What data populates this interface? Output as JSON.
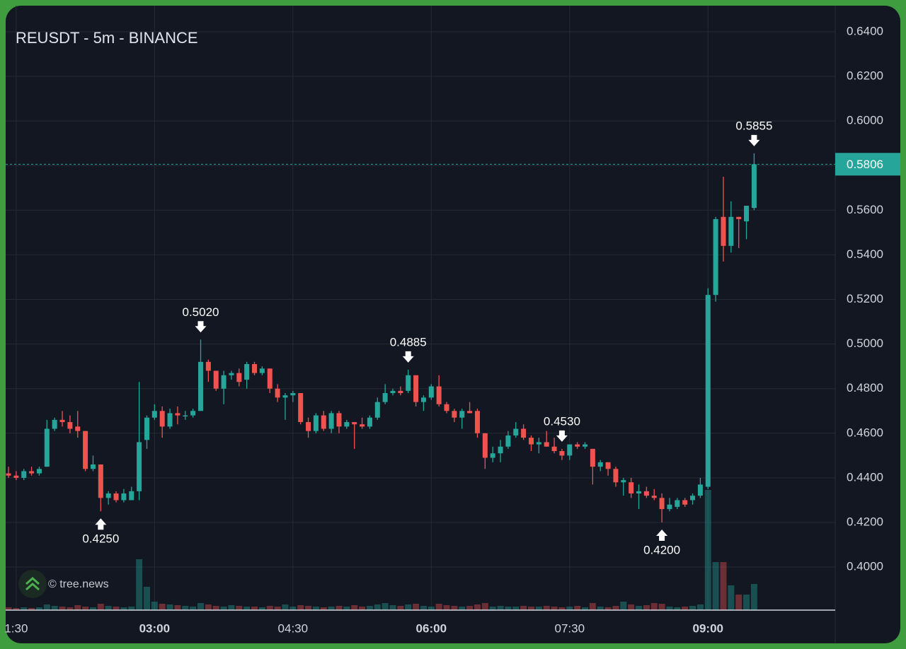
{
  "chart_data": {
    "type": "candlestick",
    "title": "REUSDT - 5m - BINANCE",
    "watermark": "© tree.news",
    "categories": [
      null,
      "1:30",
      null,
      null,
      null,
      null,
      null,
      null,
      null,
      null,
      null,
      null,
      null,
      null,
      null,
      null,
      null,
      null,
      null,
      "03:00",
      null,
      null,
      null,
      null,
      null,
      null,
      null,
      null,
      null,
      null,
      null,
      null,
      null,
      null,
      null,
      null,
      null,
      "04:30",
      null,
      null,
      null,
      null,
      null,
      null,
      null,
      null,
      null,
      null,
      null,
      null,
      null,
      null,
      null,
      null,
      null,
      "06:00",
      null,
      null,
      null,
      null,
      null,
      null,
      null,
      null,
      null,
      null,
      null,
      null,
      null,
      null,
      null,
      null,
      null,
      "07:30",
      null,
      null,
      null,
      null,
      null,
      null,
      null,
      null,
      null,
      null,
      null,
      null,
      null,
      null,
      null,
      null,
      null,
      "09:00",
      null,
      null,
      null,
      null,
      null,
      null
    ],
    "open": [
      0.442,
      0.441,
      0.44,
      0.443,
      0.442,
      0.445,
      0.462,
      0.466,
      0.465,
      0.463,
      0.461,
      0.444,
      0.446,
      0.431,
      0.433,
      0.43,
      0.43,
      0.434,
      0.457,
      0.467,
      0.47,
      0.463,
      0.469,
      0.468,
      0.468,
      0.47,
      0.492,
      0.488,
      0.48,
      0.486,
      0.487,
      0.484,
      0.491,
      0.487,
      0.489,
      0.48,
      0.476,
      0.477,
      0.478,
      0.465,
      0.461,
      0.468,
      0.462,
      0.469,
      0.463,
      0.465,
      0.464,
      0.463,
      0.467,
      0.474,
      0.478,
      0.479,
      0.479,
      0.486,
      0.474,
      0.476,
      0.481,
      0.473,
      0.47,
      0.467,
      0.47,
      0.47,
      0.46,
      0.449,
      0.451,
      0.454,
      0.459,
      0.462,
      0.458,
      0.455,
      0.456,
      0.454,
      0.452,
      0.45,
      0.455,
      0.454,
      0.453,
      0.445,
      0.447,
      0.444,
      0.438,
      0.438,
      0.433,
      0.434,
      0.432,
      0.431,
      0.426,
      0.427,
      0.43,
      0.43,
      0.432,
      0.436,
      0.522,
      0.557,
      0.544,
      0.557,
      0.555,
      0.561
    ],
    "high": [
      0.445,
      0.443,
      0.444,
      0.445,
      0.445,
      0.466,
      0.467,
      0.47,
      0.468,
      0.47,
      0.461,
      0.45,
      0.446,
      0.434,
      0.434,
      0.435,
      0.436,
      0.483,
      0.468,
      0.473,
      0.472,
      0.471,
      0.472,
      0.47,
      0.471,
      0.502,
      0.493,
      0.488,
      0.488,
      0.488,
      0.489,
      0.492,
      0.492,
      0.49,
      0.489,
      0.482,
      0.478,
      0.479,
      0.478,
      0.467,
      0.469,
      0.47,
      0.47,
      0.47,
      0.466,
      0.465,
      0.467,
      0.468,
      0.476,
      0.482,
      0.48,
      0.481,
      0.4885,
      0.486,
      0.477,
      0.482,
      0.486,
      0.474,
      0.471,
      0.471,
      0.474,
      0.471,
      0.46,
      0.454,
      0.457,
      0.461,
      0.465,
      0.464,
      0.459,
      0.458,
      0.461,
      0.458,
      0.453,
      0.455,
      0.456,
      0.456,
      0.453,
      0.448,
      0.447,
      0.445,
      0.44,
      0.44,
      0.437,
      0.436,
      0.435,
      0.433,
      0.431,
      0.431,
      0.431,
      0.433,
      0.44,
      0.525,
      0.557,
      0.575,
      0.564,
      0.557,
      0.562,
      0.5855
    ],
    "low": [
      0.44,
      0.439,
      0.439,
      0.441,
      0.441,
      0.445,
      0.461,
      0.463,
      0.46,
      0.458,
      0.443,
      0.443,
      0.425,
      0.428,
      0.429,
      0.429,
      0.43,
      0.43,
      0.453,
      0.466,
      0.458,
      0.462,
      0.464,
      0.466,
      0.467,
      0.47,
      0.483,
      0.479,
      0.473,
      0.484,
      0.481,
      0.48,
      0.486,
      0.486,
      0.478,
      0.474,
      0.466,
      0.474,
      0.464,
      0.458,
      0.46,
      0.461,
      0.46,
      0.46,
      0.462,
      0.453,
      0.462,
      0.462,
      0.466,
      0.473,
      0.477,
      0.477,
      0.478,
      0.472,
      0.47,
      0.475,
      0.472,
      0.469,
      0.465,
      0.462,
      0.469,
      0.458,
      0.444,
      0.447,
      0.447,
      0.453,
      0.458,
      0.457,
      0.452,
      0.451,
      0.454,
      0.451,
      0.448,
      0.448,
      0.453,
      0.453,
      0.437,
      0.443,
      0.441,
      0.436,
      0.432,
      0.431,
      0.426,
      0.431,
      0.43,
      0.42,
      0.425,
      0.426,
      0.427,
      0.428,
      0.431,
      0.435,
      0.519,
      0.537,
      0.541,
      0.543,
      0.547,
      0.56
    ],
    "close": [
      0.441,
      0.44,
      0.443,
      0.442,
      0.444,
      0.462,
      0.466,
      0.465,
      0.462,
      0.461,
      0.444,
      0.446,
      0.431,
      0.433,
      0.43,
      0.433,
      0.434,
      0.456,
      0.467,
      0.47,
      0.463,
      0.469,
      0.468,
      0.468,
      0.47,
      0.492,
      0.488,
      0.48,
      0.486,
      0.487,
      0.483,
      0.491,
      0.487,
      0.489,
      0.48,
      0.476,
      0.477,
      0.478,
      0.465,
      0.461,
      0.468,
      0.462,
      0.469,
      0.463,
      0.465,
      0.464,
      0.463,
      0.467,
      0.474,
      0.478,
      0.479,
      0.478,
      0.486,
      0.474,
      0.476,
      0.481,
      0.473,
      0.47,
      0.467,
      0.47,
      0.469,
      0.46,
      0.449,
      0.451,
      0.454,
      0.459,
      0.462,
      0.458,
      0.455,
      0.456,
      0.454,
      0.452,
      0.45,
      0.455,
      0.454,
      0.455,
      0.445,
      0.447,
      0.444,
      0.438,
      0.439,
      0.433,
      0.434,
      0.432,
      0.431,
      0.426,
      0.428,
      0.43,
      0.428,
      0.432,
      0.437,
      0.522,
      0.556,
      0.544,
      0.557,
      0.556,
      0.562,
      0.5806
    ],
    "volume": [
      4,
      3,
      4,
      3,
      4,
      8,
      6,
      5,
      4,
      7,
      5,
      4,
      9,
      6,
      5,
      4,
      5,
      72,
      33,
      12,
      9,
      8,
      7,
      6,
      5,
      10,
      8,
      6,
      5,
      7,
      6,
      5,
      5,
      4,
      6,
      5,
      8,
      5,
      7,
      6,
      5,
      4,
      5,
      6,
      5,
      7,
      5,
      6,
      8,
      10,
      7,
      6,
      8,
      9,
      6,
      5,
      9,
      7,
      6,
      5,
      6,
      8,
      10,
      5,
      6,
      5,
      5,
      6,
      5,
      5,
      6,
      5,
      4,
      5,
      6,
      4,
      10,
      5,
      4,
      6,
      12,
      8,
      6,
      7,
      10,
      9,
      5,
      4,
      5,
      6,
      8,
      170,
      68,
      68,
      35,
      22,
      22,
      37
    ],
    "up_color": "#26a69a",
    "down_color": "#ef5350",
    "ylim": [
      0.3807,
      0.6517
    ],
    "yticks": [
      {
        "value": 0.4,
        "label": "0.4000"
      },
      {
        "value": 0.42,
        "label": "0.4200"
      },
      {
        "value": 0.44,
        "label": "0.4400"
      },
      {
        "value": 0.46,
        "label": "0.4600"
      },
      {
        "value": 0.48,
        "label": "0.4800"
      },
      {
        "value": 0.5,
        "label": "0.5000"
      },
      {
        "value": 0.52,
        "label": "0.5200"
      },
      {
        "value": 0.54,
        "label": "0.5400"
      },
      {
        "value": 0.56,
        "label": "0.5600"
      },
      {
        "value": 0.58,
        "label": "0.5800"
      },
      {
        "value": 0.6,
        "label": "0.6000"
      },
      {
        "value": 0.62,
        "label": "0.6200"
      },
      {
        "value": 0.64,
        "label": "0.6400"
      }
    ],
    "last_price": {
      "value": 0.5806,
      "label": "0.5806"
    },
    "annotations": [
      {
        "value": 0.425,
        "label": "0.4250"
      },
      {
        "value": 0.502,
        "label": "0.5020"
      },
      {
        "value": 0.453,
        "label": "0.4530"
      },
      {
        "value": 0.4885,
        "label": "0.4885"
      },
      {
        "value": 0.42,
        "label": "0.4200"
      },
      {
        "value": 0.5855,
        "label": "0.5855"
      }
    ],
    "grid": true
  }
}
